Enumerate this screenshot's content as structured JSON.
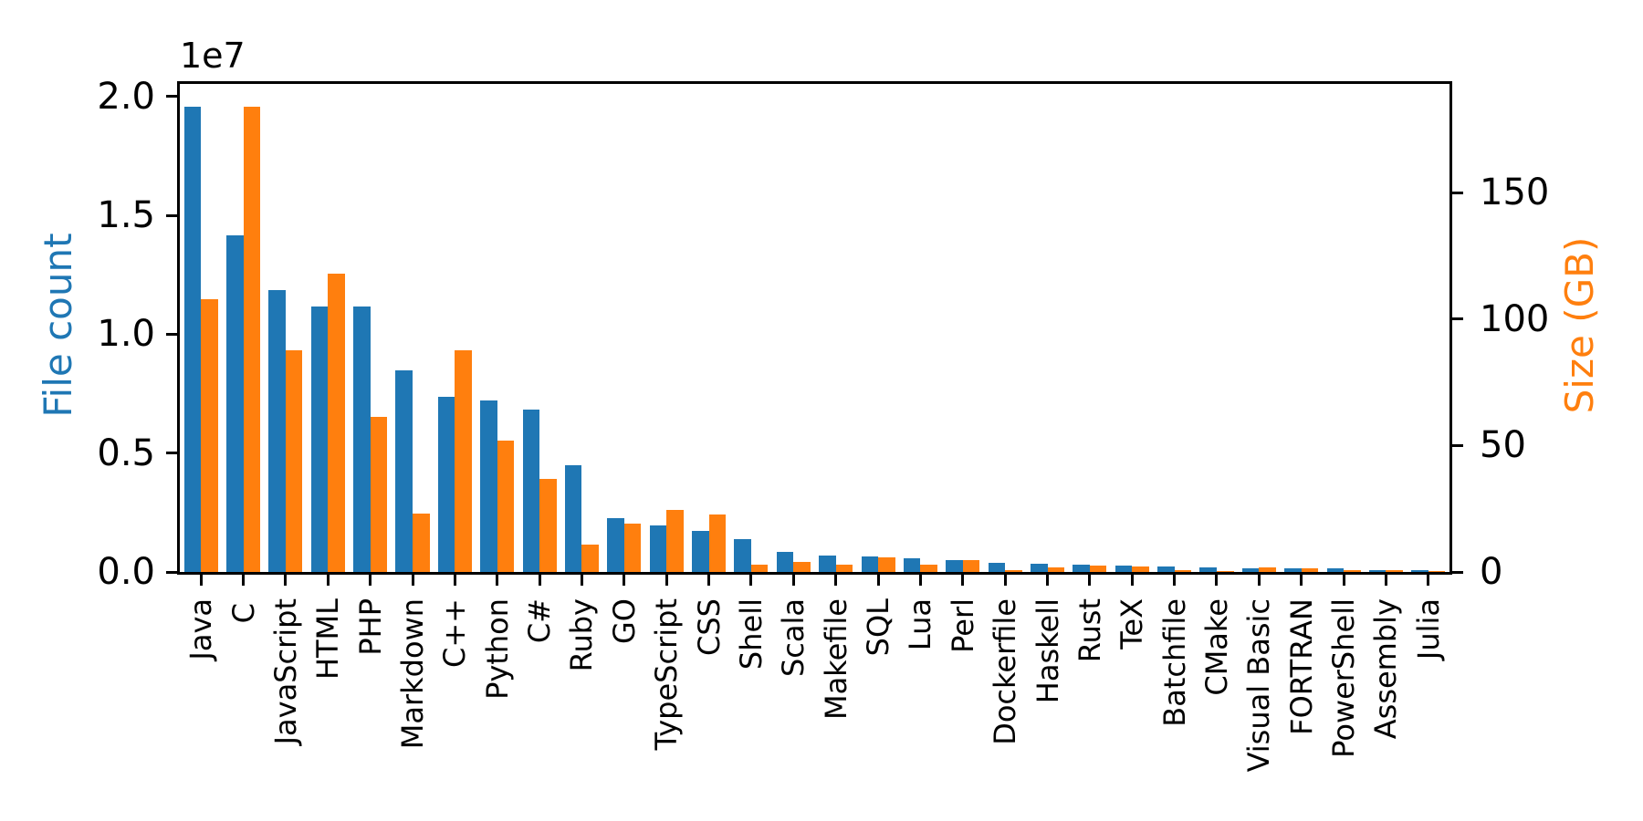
{
  "chart_data": {
    "type": "bar",
    "title": "",
    "grid": false,
    "legend_position": "none",
    "bar_group_width_fraction": 0.8,
    "categories": [
      "Java",
      "C",
      "JavaScript",
      "HTML",
      "PHP",
      "Markdown",
      "C++",
      "Python",
      "C#",
      "Ruby",
      "GO",
      "TypeScript",
      "CSS",
      "Shell",
      "Scala",
      "Makefile",
      "SQL",
      "Lua",
      "Perl",
      "Dockerfile",
      "Haskell",
      "Rust",
      "TeX",
      "Batchfile",
      "CMake",
      "Visual Basic",
      "FORTRAN",
      "PowerShell",
      "Assembly",
      "Julia"
    ],
    "series": [
      {
        "name": "File count",
        "axis": "left",
        "color": "#1f77b4",
        "values": [
          19548190,
          14143113,
          11839883,
          11178557,
          11177610,
          8464626,
          7380520,
          7226626,
          6811652,
          4473331,
          2265436,
          1940406,
          1734406,
          1385648,
          835755,
          679430,
          656671,
          578554,
          497949,
          366505,
          340623,
          322431,
          251015,
          236945,
          175282,
          155652,
          142038,
          136846,
          82905,
          58317
        ]
      },
      {
        "name": "Size (GB)",
        "axis": "right",
        "color": "#ff7f0e",
        "values": [
          107.7,
          183.83,
          87.82,
          118.12,
          61.41,
          23.09,
          87.73,
          52.03,
          36.83,
          10.95,
          19.28,
          24.59,
          22.61,
          3.01,
          3.87,
          2.92,
          5.67,
          2.81,
          4.7,
          0.71,
          1.85,
          2.68,
          2.15,
          0.7,
          0.54,
          1.91,
          1.62,
          0.69,
          0.78,
          0.29
        ]
      }
    ],
    "left_axis": {
      "label": "File count",
      "color": "#1f77b4",
      "offset_text": "1e7",
      "tick_values": [
        0,
        5000000,
        10000000,
        15000000,
        20000000
      ],
      "tick_labels": [
        "0.0",
        "0.5",
        "1.0",
        "1.5",
        "2.0"
      ],
      "max": 20525600
    },
    "right_axis": {
      "label": "Size (GB)",
      "color": "#ff7f0e",
      "tick_values": [
        0,
        50,
        100,
        150
      ],
      "tick_labels": [
        "0",
        "50",
        "100",
        "150"
      ],
      "max": 193.02
    },
    "x_axis": {
      "tick_label_rotation": 90
    }
  }
}
